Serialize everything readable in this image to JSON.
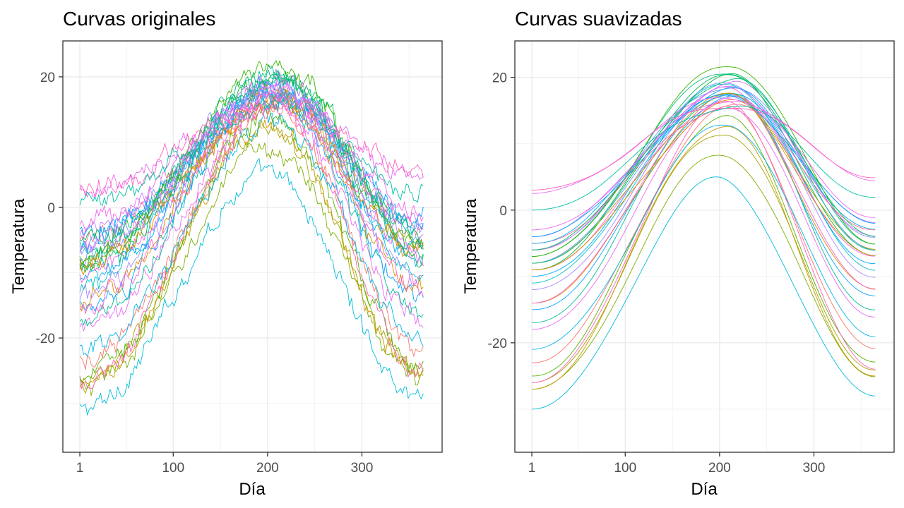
{
  "chart_data": [
    {
      "type": "line",
      "title": "Curvas originales",
      "xlabel": "Día",
      "ylabel": "Temperatura",
      "xlim": [
        -17,
        385
      ],
      "ylim": [
        -37.5,
        25.5
      ],
      "x_ticks": [
        1,
        100,
        200,
        300
      ],
      "x_tick_labels": [
        "1",
        "100",
        "200",
        "300"
      ],
      "y_ticks": [
        -20,
        0,
        20
      ],
      "y_tick_labels": [
        "-20",
        "0",
        "20"
      ],
      "grid": true,
      "legend": "none",
      "noise": 1.3,
      "series_model": "approx. 35 daily temperature curves over days 1–365; described by January value, peak value and day of peak",
      "series": [
        {
          "color": "#00BCD8",
          "jan": -31,
          "peak": 5,
          "peak_day": 200
        },
        {
          "color": "#7CAE00",
          "jan": -28,
          "peak": 9,
          "peak_day": 205
        },
        {
          "color": "#A3A500",
          "jan": -27,
          "peak": 12,
          "peak_day": 205
        },
        {
          "color": "#C49A00",
          "jan": -28,
          "peak": 13,
          "peak_day": 205
        },
        {
          "color": "#53B400",
          "jan": -26,
          "peak": 14,
          "peak_day": 205
        },
        {
          "color": "#F8766D",
          "jan": -24,
          "peak": 15,
          "peak_day": 210
        },
        {
          "color": "#FF62BC",
          "jan": -27,
          "peak": 16,
          "peak_day": 210
        },
        {
          "color": "#00B6EB",
          "jan": -22,
          "peak": 13,
          "peak_day": 210
        },
        {
          "color": "#E76BF3",
          "jan": -19,
          "peak": 16,
          "peak_day": 210
        },
        {
          "color": "#00C094",
          "jan": -18,
          "peak": 18,
          "peak_day": 210
        },
        {
          "color": "#06A4FF",
          "jan": -16,
          "peak": 17,
          "peak_day": 210
        },
        {
          "color": "#DE8C00",
          "jan": -14,
          "peak": 17,
          "peak_day": 210
        },
        {
          "color": "#FB61D7",
          "jan": -15,
          "peak": 18,
          "peak_day": 210
        },
        {
          "color": "#00BFC4",
          "jan": -12,
          "peak": 19,
          "peak_day": 212
        },
        {
          "color": "#A58AFF",
          "jan": -13,
          "peak": 18,
          "peak_day": 212
        },
        {
          "color": "#00A9FF",
          "jan": -11,
          "peak": 18,
          "peak_day": 212
        },
        {
          "color": "#F564E3",
          "jan": -10,
          "peak": 17,
          "peak_day": 212
        },
        {
          "color": "#00BA38",
          "jan": -9,
          "peak": 20,
          "peak_day": 212
        },
        {
          "color": "#B79F00",
          "jan": -8,
          "peak": 17,
          "peak_day": 212
        },
        {
          "color": "#619CFF",
          "jan": -8,
          "peak": 19,
          "peak_day": 212
        },
        {
          "color": "#00C08B",
          "jan": -7,
          "peak": 21,
          "peak_day": 212
        },
        {
          "color": "#8494FF",
          "jan": -6,
          "peak": 19,
          "peak_day": 212
        },
        {
          "color": "#FF6C91",
          "jan": -5,
          "peak": 16,
          "peak_day": 212
        },
        {
          "color": "#00B0F6",
          "jan": -5,
          "peak": 18,
          "peak_day": 212
        },
        {
          "color": "#C77CFF",
          "jan": -4,
          "peak": 18,
          "peak_day": 212
        },
        {
          "color": "#00A5FF",
          "jan": -4,
          "peak": 17,
          "peak_day": 212
        },
        {
          "color": "#39B600",
          "jan": -8,
          "peak": 22,
          "peak_day": 215
        },
        {
          "color": "#F066EA",
          "jan": -3,
          "peak": 17,
          "peak_day": 215
        },
        {
          "color": "#00BF7D",
          "jan": -9,
          "peak": 20,
          "peak_day": 215
        },
        {
          "color": "#DB72FB",
          "jan": -7,
          "peak": 19,
          "peak_day": 215
        },
        {
          "color": "#E38900",
          "jan": -9,
          "peak": 16,
          "peak_day": 215
        },
        {
          "color": "#00BD5C",
          "jan": -6,
          "peak": 20,
          "peak_day": 215
        },
        {
          "color": "#E76BF3",
          "jan": 2,
          "peak": 17,
          "peak_day": 215
        },
        {
          "color": "#FF61C3",
          "jan": 3,
          "peak": 16,
          "peak_day": 215
        },
        {
          "color": "#00C1A3",
          "jan": 0,
          "peak": 16,
          "peak_day": 215
        }
      ]
    },
    {
      "type": "line",
      "title": "Curvas suavizadas",
      "xlabel": "Día",
      "ylabel": "Temperatura",
      "xlim": [
        -17,
        385
      ],
      "ylim": [
        -36.5,
        25.5
      ],
      "x_ticks": [
        1,
        100,
        200,
        300
      ],
      "x_tick_labels": [
        "1",
        "100",
        "200",
        "300"
      ],
      "y_ticks": [
        -20,
        0,
        20
      ],
      "y_tick_labels": [
        "-20",
        "0",
        "20"
      ],
      "grid": true,
      "legend": "none",
      "noise": 0,
      "series_model": "smoothed versions of the same curves",
      "series": [
        {
          "color": "#00BCD8",
          "jan": -30,
          "peak": 4.5,
          "peak_day": 200
        },
        {
          "color": "#7CAE00",
          "jan": -27,
          "peak": 8.5,
          "peak_day": 205
        },
        {
          "color": "#A3A500",
          "jan": -26,
          "peak": 12,
          "peak_day": 205
        },
        {
          "color": "#C49A00",
          "jan": -27,
          "peak": 13,
          "peak_day": 205
        },
        {
          "color": "#53B400",
          "jan": -25,
          "peak": 14,
          "peak_day": 205
        },
        {
          "color": "#F8766D",
          "jan": -23,
          "peak": 15,
          "peak_day": 210
        },
        {
          "color": "#FF62BC",
          "jan": -26,
          "peak": 16,
          "peak_day": 210
        },
        {
          "color": "#00B6EB",
          "jan": -21,
          "peak": 13,
          "peak_day": 210
        },
        {
          "color": "#E76BF3",
          "jan": -18,
          "peak": 16,
          "peak_day": 210
        },
        {
          "color": "#00C094",
          "jan": -17,
          "peak": 18,
          "peak_day": 210
        },
        {
          "color": "#06A4FF",
          "jan": -15,
          "peak": 17,
          "peak_day": 210
        },
        {
          "color": "#DE8C00",
          "jan": -14,
          "peak": 17,
          "peak_day": 210
        },
        {
          "color": "#FB61D7",
          "jan": -14,
          "peak": 18,
          "peak_day": 210
        },
        {
          "color": "#00BFC4",
          "jan": -11,
          "peak": 19,
          "peak_day": 212
        },
        {
          "color": "#A58AFF",
          "jan": -12,
          "peak": 18,
          "peak_day": 212
        },
        {
          "color": "#00A9FF",
          "jan": -10,
          "peak": 18,
          "peak_day": 212
        },
        {
          "color": "#F564E3",
          "jan": -9,
          "peak": 17,
          "peak_day": 212
        },
        {
          "color": "#00BA38",
          "jan": -9,
          "peak": 20,
          "peak_day": 212
        },
        {
          "color": "#B79F00",
          "jan": -8,
          "peak": 17,
          "peak_day": 212
        },
        {
          "color": "#619CFF",
          "jan": -8,
          "peak": 19,
          "peak_day": 212
        },
        {
          "color": "#00C08B",
          "jan": -7,
          "peak": 21,
          "peak_day": 212
        },
        {
          "color": "#8494FF",
          "jan": -6,
          "peak": 19,
          "peak_day": 212
        },
        {
          "color": "#FF6C91",
          "jan": -5,
          "peak": 16,
          "peak_day": 212
        },
        {
          "color": "#00B0F6",
          "jan": -5,
          "peak": 18,
          "peak_day": 212
        },
        {
          "color": "#C77CFF",
          "jan": -4,
          "peak": 18,
          "peak_day": 212
        },
        {
          "color": "#00A5FF",
          "jan": -4,
          "peak": 17,
          "peak_day": 212
        },
        {
          "color": "#39B600",
          "jan": -7,
          "peak": 22,
          "peak_day": 215
        },
        {
          "color": "#F066EA",
          "jan": -3,
          "peak": 17,
          "peak_day": 215
        },
        {
          "color": "#00BF7D",
          "jan": -8,
          "peak": 20,
          "peak_day": 215
        },
        {
          "color": "#DB72FB",
          "jan": -6,
          "peak": 19,
          "peak_day": 215
        },
        {
          "color": "#E38900",
          "jan": -9,
          "peak": 16,
          "peak_day": 215
        },
        {
          "color": "#00BD5C",
          "jan": -6,
          "peak": 20,
          "peak_day": 215
        },
        {
          "color": "#E76BF3",
          "jan": 2.5,
          "peak": 17,
          "peak_day": 215
        },
        {
          "color": "#FF61C3",
          "jan": 3,
          "peak": 16,
          "peak_day": 215
        },
        {
          "color": "#00C1A3",
          "jan": 0,
          "peak": 16,
          "peak_day": 215
        }
      ]
    }
  ]
}
